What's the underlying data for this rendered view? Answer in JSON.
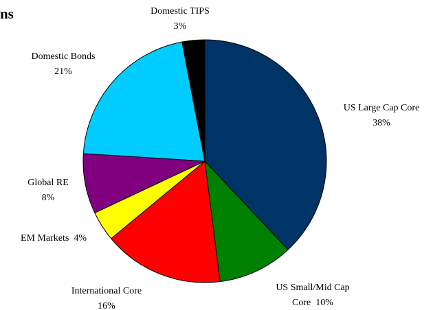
{
  "chart_data": {
    "type": "pie",
    "title": "ns",
    "categories": [
      "US Large Cap Core",
      "US Small/Mid Cap Core",
      "International Core",
      "EM Markets",
      "Global RE",
      "Domestic Bonds",
      "Domestic TIPS"
    ],
    "values": [
      38,
      10,
      16,
      4,
      8,
      21,
      3
    ],
    "value_labels": [
      "38%",
      "10%",
      "16%",
      "4%",
      "8%",
      "21%",
      "3%"
    ],
    "colors": [
      "#003366",
      "#008000",
      "#ff0000",
      "#ffff00",
      "#800080",
      "#00ccff",
      "#000000"
    ]
  }
}
